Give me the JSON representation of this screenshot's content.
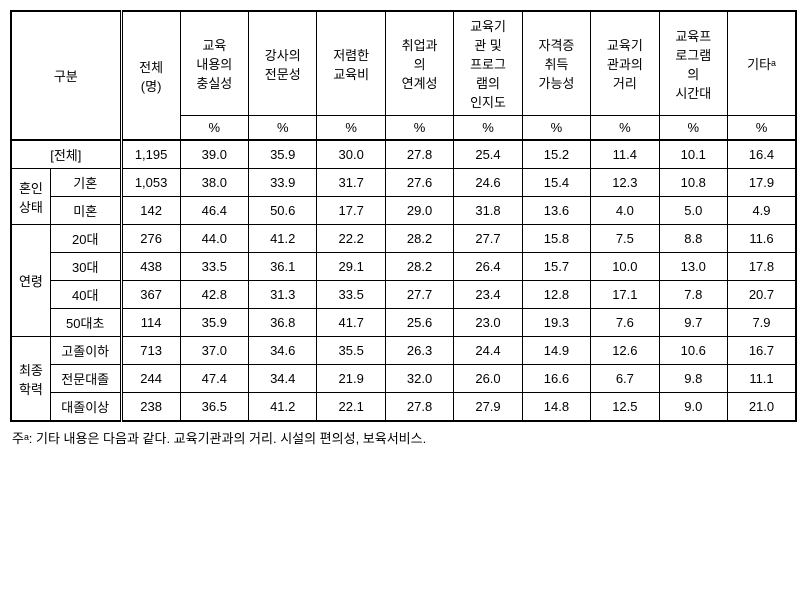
{
  "header": {
    "category": "구분",
    "total": "전체\n(명)",
    "cols": [
      "교육\n내용의\n충실성",
      "강사의\n전문성",
      "저렴한\n교육비",
      "취업과\n의\n연계성",
      "교육기\n관 및\n프로그\n램의\n인지도",
      "자격증\n취득\n가능성",
      "교육기\n관과의\n거리",
      "교육프\n로그램\n의\n시간대",
      "기타ᵃ"
    ],
    "pct": "%"
  },
  "totalRow": {
    "label": "[전체]",
    "count": "1,195",
    "vals": [
      "39.0",
      "35.9",
      "30.0",
      "27.8",
      "25.4",
      "15.2",
      "11.4",
      "10.1",
      "16.4"
    ]
  },
  "groups": [
    {
      "name": "혼인\n상태",
      "rows": [
        {
          "label": "기혼",
          "count": "1,053",
          "vals": [
            "38.0",
            "33.9",
            "31.7",
            "27.6",
            "24.6",
            "15.4",
            "12.3",
            "10.8",
            "17.9"
          ]
        },
        {
          "label": "미혼",
          "count": "142",
          "vals": [
            "46.4",
            "50.6",
            "17.7",
            "29.0",
            "31.8",
            "13.6",
            "4.0",
            "5.0",
            "4.9"
          ]
        }
      ]
    },
    {
      "name": "연령",
      "rows": [
        {
          "label": "20대",
          "count": "276",
          "vals": [
            "44.0",
            "41.2",
            "22.2",
            "28.2",
            "27.7",
            "15.8",
            "7.5",
            "8.8",
            "11.6"
          ]
        },
        {
          "label": "30대",
          "count": "438",
          "vals": [
            "33.5",
            "36.1",
            "29.1",
            "28.2",
            "26.4",
            "15.7",
            "10.0",
            "13.0",
            "17.8"
          ]
        },
        {
          "label": "40대",
          "count": "367",
          "vals": [
            "42.8",
            "31.3",
            "33.5",
            "27.7",
            "23.4",
            "12.8",
            "17.1",
            "7.8",
            "20.7"
          ]
        },
        {
          "label": "50대초",
          "count": "114",
          "vals": [
            "35.9",
            "36.8",
            "41.7",
            "25.6",
            "23.0",
            "19.3",
            "7.6",
            "9.7",
            "7.9"
          ]
        }
      ]
    },
    {
      "name": "최종\n학력",
      "rows": [
        {
          "label": "고졸이하",
          "count": "713",
          "vals": [
            "37.0",
            "34.6",
            "35.5",
            "26.3",
            "24.4",
            "14.9",
            "12.6",
            "10.6",
            "16.7"
          ]
        },
        {
          "label": "전문대졸",
          "count": "244",
          "vals": [
            "47.4",
            "34.4",
            "21.9",
            "32.0",
            "26.0",
            "16.6",
            "6.7",
            "9.8",
            "11.1"
          ]
        },
        {
          "label": "대졸이상",
          "count": "238",
          "vals": [
            "36.5",
            "41.2",
            "22.1",
            "27.8",
            "27.9",
            "14.8",
            "12.5",
            "9.0",
            "21.0"
          ]
        }
      ]
    }
  ],
  "footnote": "주ᵃ: 기타 내용은 다음과 같다. 교육기관과의 거리. 시설의 편의성, 보육서비스."
}
